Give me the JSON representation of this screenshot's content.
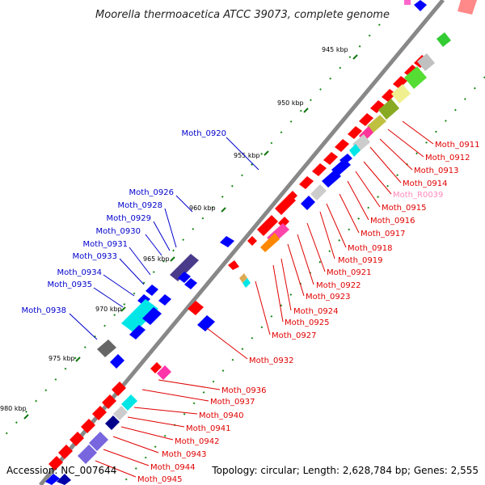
{
  "title": "Moorella thermoacetica ATCC 39073, complete genome",
  "footer": {
    "accession": "Accession: NC_007644",
    "topology": "Topology: circular; Length: 2,628,784 bp; Genes: 2,555"
  },
  "colors": {
    "gene_red": "#ff0000",
    "gene_blue": "#0000ff",
    "label_red": "#e00000",
    "label_blue": "#0000cc",
    "label_pink": "#ff88bb",
    "backbone": "#888888",
    "tick_green": "#117711"
  },
  "scale_labels": [
    "945 kbp",
    "950 kbp",
    "955 kbp",
    "960 kbp",
    "965 kbp",
    "970 kbp",
    "975 kbp",
    "980 kbp"
  ],
  "left_labels": [
    "Moth_0920",
    "Moth_0926",
    "Moth_0928",
    "Moth_0929",
    "Moth_0930",
    "Moth_0931",
    "Moth_0933",
    "Moth_0934",
    "Moth_0935",
    "Moth_0938"
  ],
  "right_labels": [
    "Moth_0911",
    "Moth_0912",
    "Moth_0913",
    "Moth_0914",
    "Moth_R0039",
    "Moth_0915",
    "Moth_0916",
    "Moth_0917",
    "Moth_0918",
    "Moth_0919",
    "Moth_0921",
    "Moth_0922",
    "Moth_0923",
    "Moth_0924",
    "Moth_0925",
    "Moth_0927",
    "Moth_0932"
  ],
  "bottom_labels": [
    "Moth_0936",
    "Moth_0937",
    "Moth_0940",
    "Moth_0941",
    "Moth_0942",
    "Moth_0943",
    "Moth_0944",
    "Moth_0945"
  ]
}
